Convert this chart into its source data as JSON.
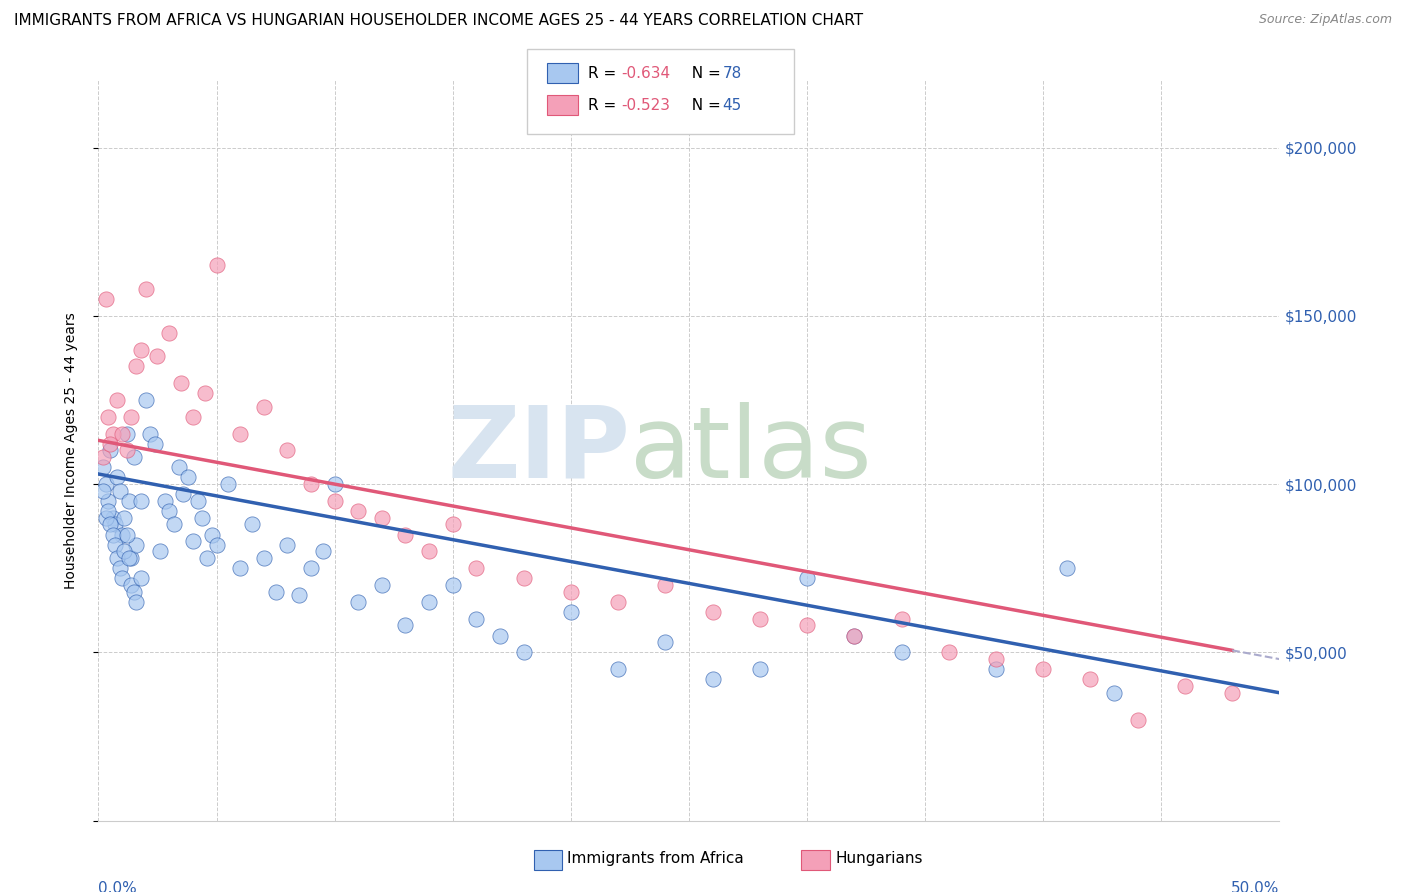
{
  "title": "IMMIGRANTS FROM AFRICA VS HUNGARIAN HOUSEHOLDER INCOME AGES 25 - 44 YEARS CORRELATION CHART",
  "source": "Source: ZipAtlas.com",
  "ylabel": "Householder Income Ages 25 - 44 years",
  "xlim": [
    0.0,
    0.5
  ],
  "ylim": [
    0,
    220000
  ],
  "yticks": [
    0,
    50000,
    100000,
    150000,
    200000
  ],
  "ytick_labels": [
    "",
    "$50,000",
    "$100,000",
    "$150,000",
    "$200,000"
  ],
  "legend_label1": "Immigrants from Africa",
  "legend_label2": "Hungarians",
  "color_blue": "#A8C8F0",
  "color_pink": "#F4A0B8",
  "color_blue_line": "#3060B0",
  "color_pink_line": "#E05878",
  "color_gray_dashed": "#AAAACC",
  "title_fontsize": 11,
  "source_fontsize": 9,
  "blue_line_x0": 0.0,
  "blue_line_y0": 103000,
  "blue_line_x1": 0.5,
  "blue_line_y1": 38000,
  "pink_line_x0": 0.0,
  "pink_line_y0": 113000,
  "pink_line_x1": 0.5,
  "pink_line_y1": 48000,
  "blue_scatter_x": [
    0.002,
    0.003,
    0.004,
    0.005,
    0.006,
    0.007,
    0.008,
    0.009,
    0.01,
    0.011,
    0.012,
    0.013,
    0.014,
    0.015,
    0.016,
    0.018,
    0.02,
    0.022,
    0.024,
    0.026,
    0.028,
    0.03,
    0.032,
    0.034,
    0.036,
    0.038,
    0.04,
    0.042,
    0.044,
    0.046,
    0.048,
    0.05,
    0.055,
    0.06,
    0.065,
    0.07,
    0.075,
    0.08,
    0.085,
    0.09,
    0.095,
    0.1,
    0.11,
    0.12,
    0.13,
    0.14,
    0.15,
    0.16,
    0.17,
    0.18,
    0.2,
    0.22,
    0.24,
    0.26,
    0.28,
    0.3,
    0.32,
    0.34,
    0.38,
    0.41,
    0.43,
    0.002,
    0.003,
    0.004,
    0.005,
    0.006,
    0.007,
    0.008,
    0.009,
    0.01,
    0.011,
    0.012,
    0.013,
    0.014,
    0.015,
    0.016,
    0.018
  ],
  "blue_scatter_y": [
    105000,
    100000,
    95000,
    110000,
    90000,
    88000,
    102000,
    98000,
    85000,
    90000,
    115000,
    95000,
    78000,
    108000,
    82000,
    95000,
    125000,
    115000,
    112000,
    80000,
    95000,
    92000,
    88000,
    105000,
    97000,
    102000,
    83000,
    95000,
    90000,
    78000,
    85000,
    82000,
    100000,
    75000,
    88000,
    78000,
    68000,
    82000,
    67000,
    75000,
    80000,
    100000,
    65000,
    70000,
    58000,
    65000,
    70000,
    60000,
    55000,
    50000,
    62000,
    45000,
    53000,
    42000,
    45000,
    72000,
    55000,
    50000,
    45000,
    75000,
    38000,
    98000,
    90000,
    92000,
    88000,
    85000,
    82000,
    78000,
    75000,
    72000,
    80000,
    85000,
    78000,
    70000,
    68000,
    65000,
    72000
  ],
  "pink_scatter_x": [
    0.002,
    0.004,
    0.006,
    0.008,
    0.01,
    0.012,
    0.014,
    0.016,
    0.018,
    0.02,
    0.025,
    0.03,
    0.035,
    0.04,
    0.045,
    0.05,
    0.06,
    0.07,
    0.08,
    0.09,
    0.1,
    0.11,
    0.12,
    0.13,
    0.14,
    0.15,
    0.16,
    0.18,
    0.2,
    0.22,
    0.24,
    0.26,
    0.28,
    0.3,
    0.32,
    0.34,
    0.36,
    0.38,
    0.4,
    0.42,
    0.44,
    0.46,
    0.48,
    0.003,
    0.005
  ],
  "pink_scatter_y": [
    108000,
    120000,
    115000,
    125000,
    115000,
    110000,
    120000,
    135000,
    140000,
    158000,
    138000,
    145000,
    130000,
    120000,
    127000,
    165000,
    115000,
    123000,
    110000,
    100000,
    95000,
    92000,
    90000,
    85000,
    80000,
    88000,
    75000,
    72000,
    68000,
    65000,
    70000,
    62000,
    60000,
    58000,
    55000,
    60000,
    50000,
    48000,
    45000,
    42000,
    30000,
    40000,
    38000,
    155000,
    112000
  ]
}
